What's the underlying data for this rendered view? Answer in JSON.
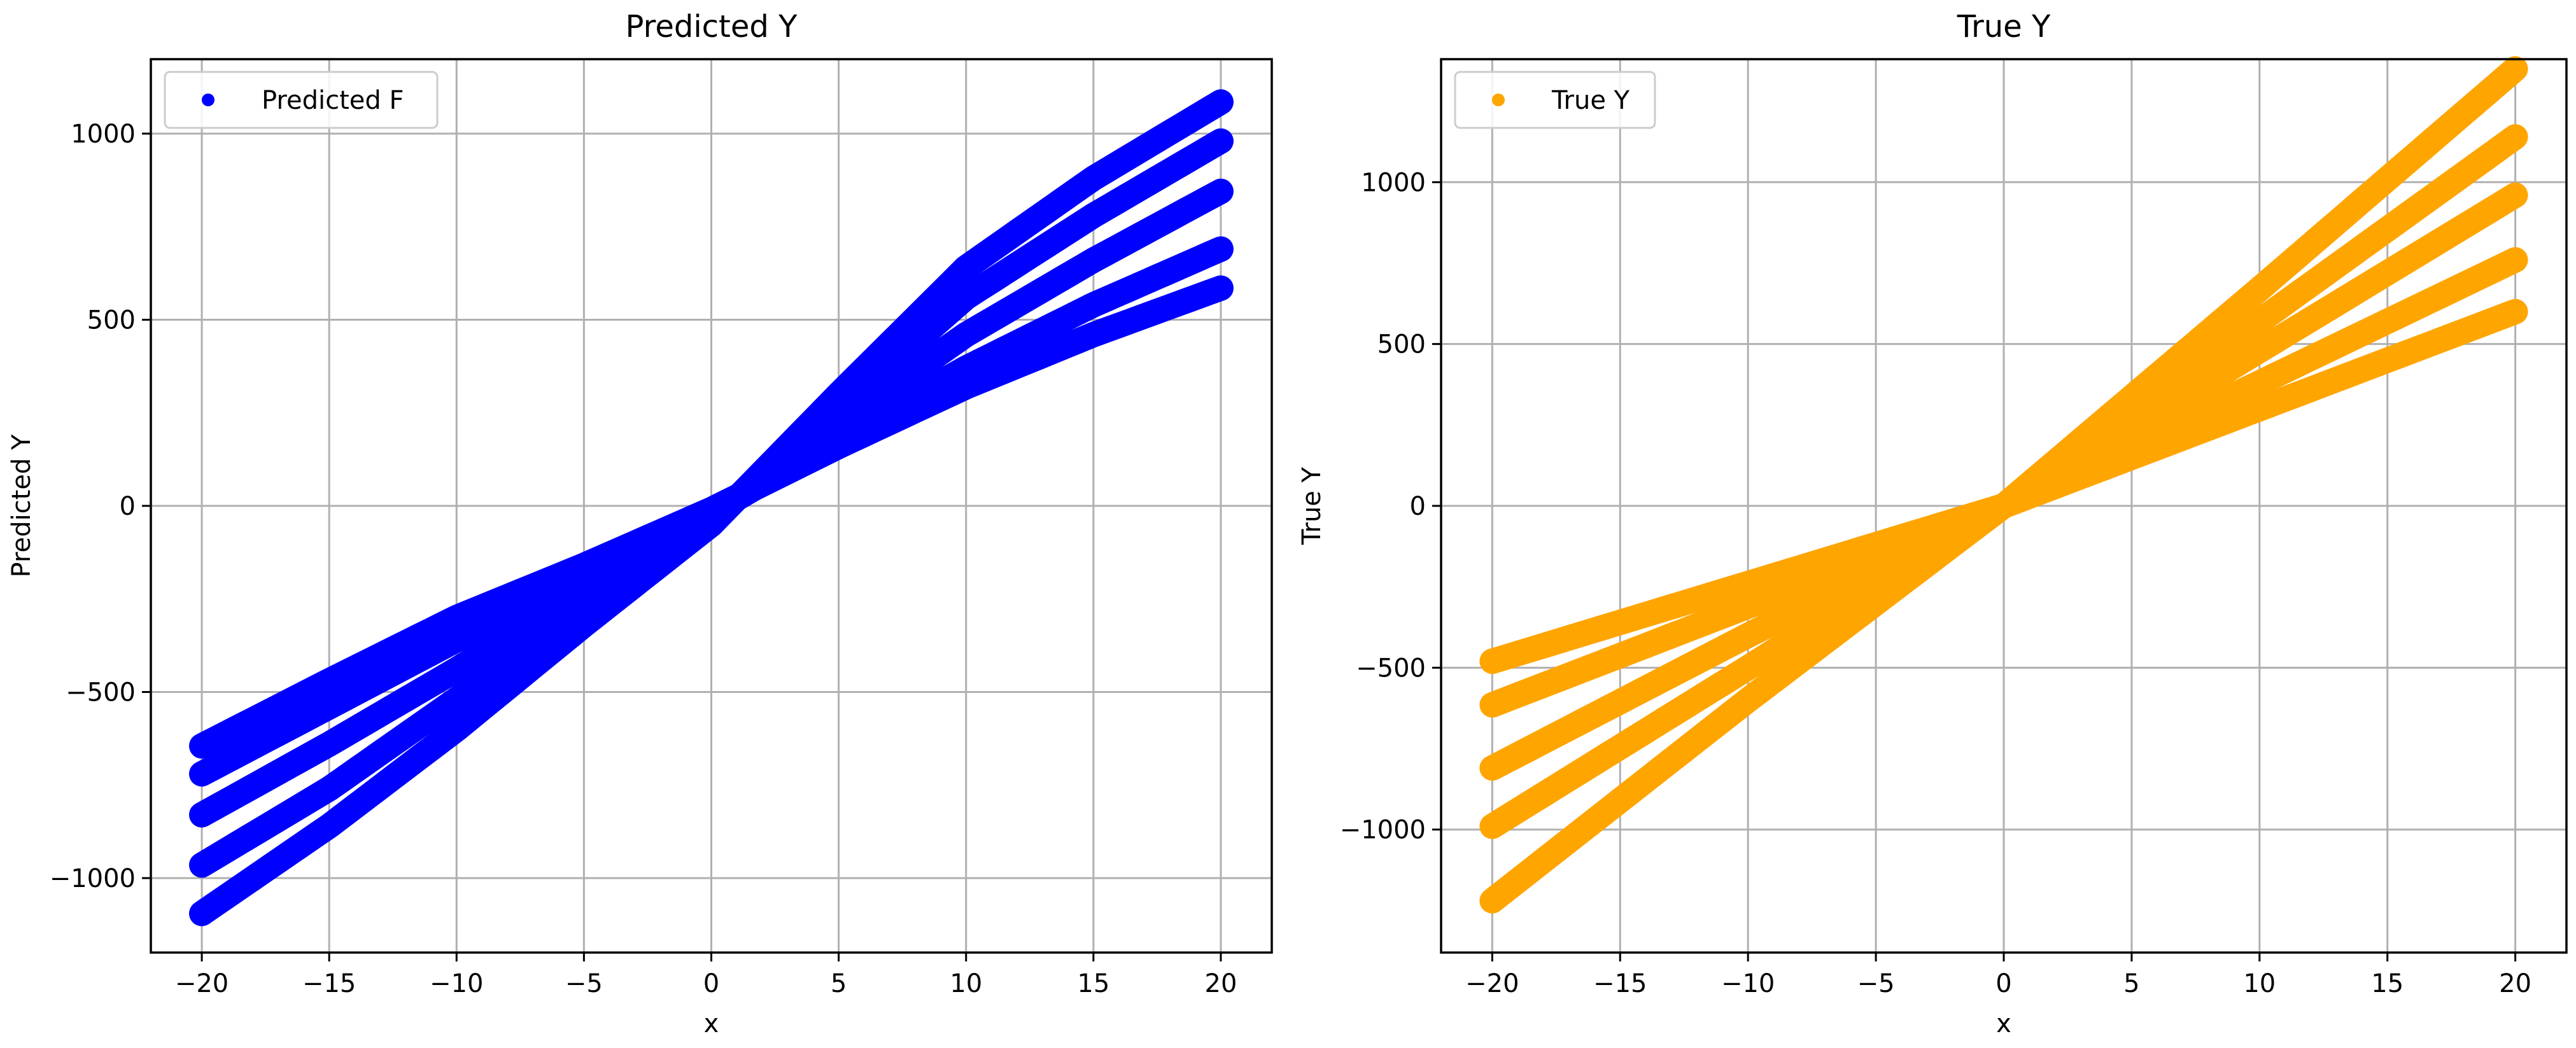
{
  "chart_data": [
    {
      "type": "scatter",
      "title": "Predicted Y",
      "xlabel": "x",
      "ylabel": "Predicted Y",
      "xlim": [
        -22,
        22
      ],
      "ylim": [
        -1200,
        1200
      ],
      "xticks": [
        -20,
        -15,
        -10,
        -5,
        0,
        5,
        10,
        15,
        20
      ],
      "yticks": [
        -1000,
        -500,
        0,
        500,
        1000
      ],
      "grid": true,
      "legend_position": "top-left",
      "color": "#0000ff",
      "series": [
        {
          "name": "Predicted F",
          "curves": [
            {
              "x": [
                -20,
                -15,
                -10,
                -5,
                0,
                5,
                10,
                15,
                20
              ],
              "y": [
                -645,
                -470,
                -300,
                -160,
                -10,
                160,
                320,
                460,
                585
              ]
            },
            {
              "x": [
                -20,
                -15,
                -10,
                -5,
                0,
                5,
                10,
                15,
                20
              ],
              "y": [
                -720,
                -540,
                -360,
                -190,
                -20,
                180,
                370,
                540,
                690
              ]
            },
            {
              "x": [
                -20,
                -15,
                -10,
                -5,
                0,
                5,
                10,
                15,
                20
              ],
              "y": [
                -830,
                -640,
                -440,
                -230,
                -30,
                220,
                460,
                660,
                845
              ]
            },
            {
              "x": [
                -20,
                -15,
                -10,
                -5,
                0,
                5,
                10,
                15,
                20
              ],
              "y": [
                -965,
                -760,
                -520,
                -280,
                -40,
                260,
                560,
                780,
                980
              ]
            },
            {
              "x": [
                -20,
                -15,
                -10,
                -5,
                0,
                5,
                10,
                15,
                20
              ],
              "y": [
                -1095,
                -860,
                -600,
                -320,
                -50,
                300,
                640,
                880,
                1085
              ]
            }
          ]
        }
      ]
    },
    {
      "type": "scatter",
      "title": "True Y",
      "xlabel": "x",
      "ylabel": "True Y",
      "xlim": [
        -22,
        22
      ],
      "ylim": [
        -1380,
        1380
      ],
      "xticks": [
        -20,
        -15,
        -10,
        -5,
        0,
        5,
        10,
        15,
        20
      ],
      "yticks": [
        -1000,
        -500,
        0,
        500,
        1000
      ],
      "grid": true,
      "legend_position": "top-left",
      "color": "#ffa500",
      "series": [
        {
          "name": "True Y",
          "curves": [
            {
              "x": [
                -20,
                -10,
                0,
                10,
                20
              ],
              "y": [
                -480,
                -240,
                0,
                300,
                600
              ]
            },
            {
              "x": [
                -20,
                -10,
                0,
                10,
                20
              ],
              "y": [
                -615,
                -310,
                0,
                380,
                760
              ]
            },
            {
              "x": [
                -20,
                -10,
                0,
                10,
                20
              ],
              "y": [
                -810,
                -400,
                0,
                480,
                960
              ]
            },
            {
              "x": [
                -20,
                -10,
                0,
                10,
                20
              ],
              "y": [
                -990,
                -500,
                0,
                570,
                1140
              ]
            },
            {
              "x": [
                -20,
                -10,
                0,
                10,
                20
              ],
              "y": [
                -1220,
                -600,
                0,
                670,
                1350
              ]
            }
          ]
        }
      ]
    }
  ]
}
